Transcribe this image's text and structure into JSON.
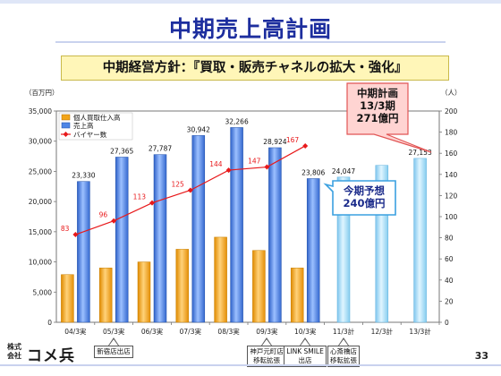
{
  "title": "中期売上高計画",
  "subtitle": "中期経営方針：『買取・販売チャネルの拡大・強化』",
  "page_number": "33",
  "logo": {
    "small": "株式\n会社",
    "main": "コメ兵"
  },
  "colors": {
    "orange": "#f2a418",
    "blue": "#4f86e6",
    "light_blue": "#9cd7f4",
    "red_line": "#e8191b"
  },
  "chart_data": {
    "type": "bar",
    "categories": [
      "04/3実",
      "05/3実",
      "06/3実",
      "07/3実",
      "08/3実",
      "09/3実",
      "10/3実",
      "11/3計",
      "12/3計",
      "13/3計"
    ],
    "y_left_label": "（百万円）",
    "y_right_label": "（人）",
    "ylim_left": [
      0,
      35000
    ],
    "ylim_right": [
      0,
      200
    ],
    "left_ticks": [
      "0",
      "5,000",
      "10,000",
      "15,000",
      "20,000",
      "25,000",
      "30,000",
      "35,000"
    ],
    "right_ticks": [
      "0",
      "20",
      "40",
      "60",
      "80",
      "100",
      "120",
      "140",
      "160",
      "180",
      "200"
    ],
    "series": [
      {
        "name": "個人買取仕入高",
        "type": "bar",
        "color": "#f2a418",
        "values": [
          7900,
          9000,
          10000,
          12100,
          14100,
          11900,
          9000,
          null,
          null,
          null
        ]
      },
      {
        "name": "売上高",
        "type": "bar",
        "color": "#4f86e6",
        "values": [
          23330,
          27365,
          27787,
          30942,
          32266,
          28924,
          23806,
          24047,
          26000,
          27153
        ],
        "labels": [
          "23,330",
          "27,365",
          "27,787",
          "30,942",
          "32,266",
          "28,924",
          "23,806",
          "24,047",
          "",
          "27,153"
        ],
        "plan_from_index": 7
      },
      {
        "name": "バイヤー数",
        "type": "line",
        "axis": "right",
        "color": "#e8191b",
        "values": [
          83,
          96,
          113,
          125,
          144,
          147,
          167,
          null,
          null,
          null
        ],
        "labels": [
          "83",
          "96",
          "113",
          "125",
          "144",
          "147",
          "167",
          "",
          "",
          ""
        ]
      }
    ],
    "callouts": [
      {
        "text": "中期計画\n13/3期\n271億円"
      },
      {
        "text": "今期予想\n240億円"
      }
    ],
    "store_notes": [
      {
        "category": "05/3実",
        "text": "新宿店出店"
      },
      {
        "category": "09/3実",
        "text": "神戸元町店\n移転拡張"
      },
      {
        "category": "10/3実",
        "text": "LINK SMILE\n出店"
      },
      {
        "category": "11/3計",
        "text": "心斎橋店\n移転拡張"
      }
    ],
    "legend_position": "top-left"
  }
}
